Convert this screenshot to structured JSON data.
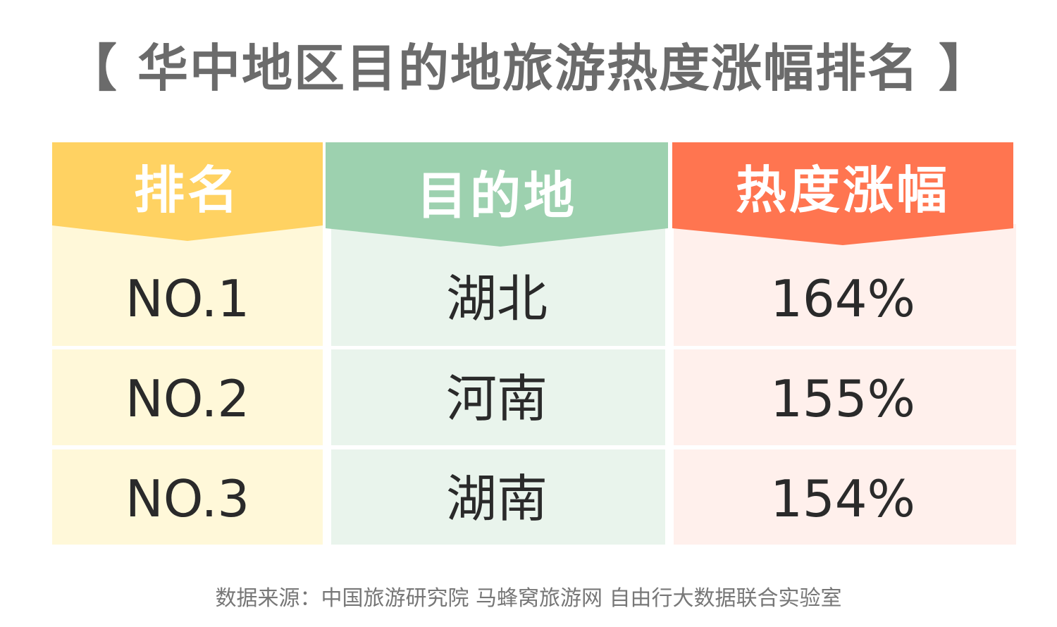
{
  "title": "【 华中地区目的地旅游热度涨幅排名 】",
  "headers": {
    "rank": "排名",
    "destination": "目的地",
    "heat": "热度涨幅"
  },
  "colors": {
    "rank_header": "#ffd262",
    "dest_header": "#9dd1af",
    "heat_header": "#ff7550",
    "rank_cell": "#fff8d9",
    "dest_cell": "#e9f4ec",
    "heat_cell": "#fff0ec",
    "title": "#6b6b6b",
    "cell_text": "#2a2a2a",
    "footer": "#777777"
  },
  "chart_data": {
    "type": "table",
    "columns": [
      "排名",
      "目的地",
      "热度涨幅"
    ],
    "rows": [
      {
        "rank": "NO.1",
        "destination": "湖北",
        "heat": "164%"
      },
      {
        "rank": "NO.2",
        "destination": "河南",
        "heat": "155%"
      },
      {
        "rank": "NO.3",
        "destination": "湖南",
        "heat": "154%"
      }
    ],
    "values": [
      164,
      155,
      154
    ]
  },
  "footer": "数据来源：中国旅游研究院 马蜂窝旅游网 自由行大数据联合实验室"
}
